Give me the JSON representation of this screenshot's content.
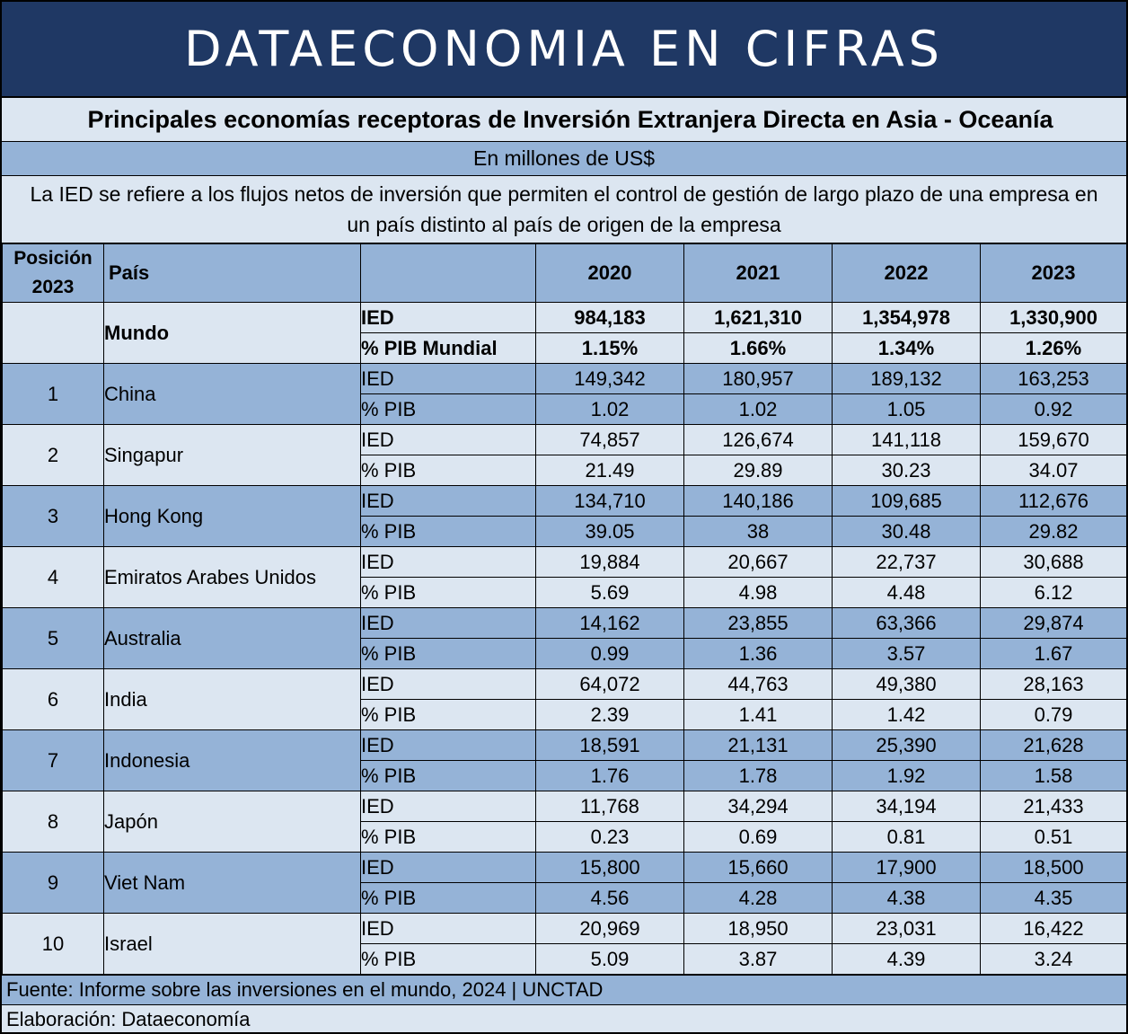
{
  "banner": "DATAECONOMIA EN CIFRAS",
  "title": "Principales economías receptoras de Inversión Extranjera Directa en Asia - Oceanía",
  "unit": "En millones de US$",
  "description": "La IED se refiere a los flujos netos de inversión que permiten el control de gestión de largo plazo de una empresa en un país distinto al país de origen de la empresa",
  "header": {
    "position": "Posición 2023",
    "country": "País",
    "years": [
      "2020",
      "2021",
      "2022",
      "2023"
    ]
  },
  "world": {
    "name": "Mundo",
    "ied_label": "IED",
    "pib_label": "% PIB Mundial",
    "ied": [
      "984,183",
      "1,621,310",
      "1,354,978",
      "1,330,900"
    ],
    "pib": [
      "1.15%",
      "1.66%",
      "1.34%",
      "1.26%"
    ]
  },
  "metric_labels": {
    "ied": "IED",
    "pib": "% PIB"
  },
  "rows": [
    {
      "pos": "1",
      "country": "China",
      "ied": [
        "149,342",
        "180,957",
        "189,132",
        "163,253"
      ],
      "pib": [
        "1.02",
        "1.02",
        "1.05",
        "0.92"
      ]
    },
    {
      "pos": "2",
      "country": "Singapur",
      "ied": [
        "74,857",
        "126,674",
        "141,118",
        "159,670"
      ],
      "pib": [
        "21.49",
        "29.89",
        "30.23",
        "34.07"
      ]
    },
    {
      "pos": "3",
      "country": "Hong Kong",
      "ied": [
        "134,710",
        "140,186",
        "109,685",
        "112,676"
      ],
      "pib": [
        "39.05",
        "38",
        "30.48",
        "29.82"
      ]
    },
    {
      "pos": "4",
      "country": "Emiratos Arabes Unidos",
      "ied": [
        "19,884",
        "20,667",
        "22,737",
        "30,688"
      ],
      "pib": [
        "5.69",
        "4.98",
        "4.48",
        "6.12"
      ]
    },
    {
      "pos": "5",
      "country": "Australia",
      "ied": [
        "14,162",
        "23,855",
        "63,366",
        "29,874"
      ],
      "pib": [
        "0.99",
        "1.36",
        "3.57",
        "1.67"
      ]
    },
    {
      "pos": "6",
      "country": "India",
      "ied": [
        "64,072",
        "44,763",
        "49,380",
        "28,163"
      ],
      "pib": [
        "2.39",
        "1.41",
        "1.42",
        "0.79"
      ]
    },
    {
      "pos": "7",
      "country": "Indonesia",
      "ied": [
        "18,591",
        "21,131",
        "25,390",
        "21,628"
      ],
      "pib": [
        "1.76",
        "1.78",
        "1.92",
        "1.58"
      ]
    },
    {
      "pos": "8",
      "country": "Japón",
      "ied": [
        "11,768",
        "34,294",
        "34,194",
        "21,433"
      ],
      "pib": [
        "0.23",
        "0.69",
        "0.81",
        "0.51"
      ]
    },
    {
      "pos": "9",
      "country": "Viet Nam",
      "ied": [
        "15,800",
        "15,660",
        "17,900",
        "18,500"
      ],
      "pib": [
        "4.56",
        "4.28",
        "4.38",
        "4.35"
      ]
    },
    {
      "pos": "10",
      "country": "Israel",
      "ied": [
        "20,969",
        "18,950",
        "23,031",
        "16,422"
      ],
      "pib": [
        "5.09",
        "3.87",
        "4.39",
        "3.24"
      ]
    }
  ],
  "footer": {
    "source": "Fuente: Informe sobre las inversiones en el mundo, 2024 | UNCTAD",
    "credit": "Elaboración: Dataeconomía"
  },
  "colors": {
    "banner": "#1f3864",
    "dark_band": "#95b3d7",
    "light_band": "#dce6f1"
  }
}
